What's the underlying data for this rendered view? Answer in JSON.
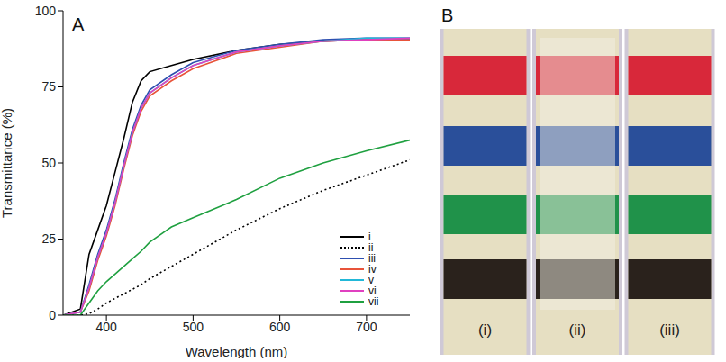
{
  "chart_data": {
    "type": "line",
    "panel": "A",
    "x_label": "Wavelength (nm)",
    "y_label": "Transmittance (%)",
    "x": [
      350,
      370,
      380,
      390,
      400,
      410,
      420,
      430,
      440,
      450,
      475,
      500,
      550,
      600,
      650,
      700,
      750
    ],
    "xlim": [
      350,
      750
    ],
    "xticks": [
      400,
      500,
      600,
      700
    ],
    "ylim": [
      0,
      100
    ],
    "yticks": [
      0,
      25,
      50,
      75,
      100
    ],
    "legend": "lower right",
    "series": [
      {
        "name": "i",
        "color": "#000000",
        "line_style": "solid",
        "values": [
          0,
          2,
          20,
          28,
          36,
          47,
          58,
          70,
          77,
          80,
          82,
          84,
          87,
          89,
          90,
          90.5,
          90.5
        ]
      },
      {
        "name": "ii",
        "color": "#000000",
        "line_style": "dotted",
        "values": [
          0,
          0,
          0.5,
          2,
          4,
          5.5,
          7,
          8.5,
          10,
          12,
          16,
          20,
          28,
          35,
          41,
          46,
          51
        ]
      },
      {
        "name": "iii",
        "color": "#2e4fb0",
        "line_style": "solid",
        "values": [
          0,
          1,
          10,
          20,
          28,
          38,
          50,
          61,
          69,
          74,
          79,
          83,
          87,
          89,
          90.5,
          91,
          91
        ]
      },
      {
        "name": "iv",
        "color": "#e8533a",
        "line_style": "solid",
        "values": [
          0,
          1,
          8,
          18,
          26,
          36,
          48,
          59,
          67,
          72,
          77,
          81,
          86,
          88,
          90,
          90.5,
          90.5
        ]
      },
      {
        "name": "v",
        "color": "#22b8d8",
        "line_style": "solid",
        "values": [
          0,
          1,
          9,
          19,
          27,
          37,
          49,
          60,
          68,
          73,
          78,
          82,
          86.5,
          88.5,
          90,
          91,
          91
        ]
      },
      {
        "name": "vi",
        "color": "#e040c0",
        "line_style": "solid",
        "values": [
          0,
          1,
          9,
          19,
          27,
          37,
          49,
          60,
          68,
          73,
          78,
          82,
          86.5,
          88.5,
          90,
          90.5,
          91
        ]
      },
      {
        "name": "vii",
        "color": "#1fa040",
        "line_style": "solid",
        "values": [
          0,
          0,
          4,
          8,
          11,
          13.5,
          16,
          18.5,
          21,
          24,
          29,
          32,
          38,
          45,
          50,
          54,
          57.5
        ]
      }
    ]
  },
  "photo": {
    "panel": "B",
    "band_colors": [
      "#d8283a",
      "#2a4f9a",
      "#20924a",
      "#2a221c"
    ],
    "strips": [
      {
        "label": "(i)",
        "hazy": false
      },
      {
        "label": "(ii)",
        "hazy": true
      },
      {
        "label": "(iii)",
        "hazy": false
      }
    ]
  }
}
